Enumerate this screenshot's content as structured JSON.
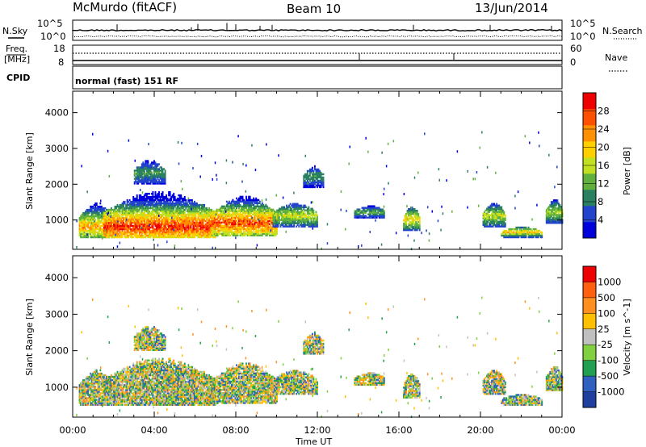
{
  "header": {
    "station": "McMurdo (fitACF)",
    "beam": "Beam 10",
    "date": "13/Jun/2014"
  },
  "strip_panels": {
    "nsky_label": "N.Sky",
    "nsky_ticks": [
      "10^5",
      "10^0"
    ],
    "nsearch_label": "N.Search",
    "nsearch_ticks": [
      "10^5",
      "10^0"
    ],
    "freq_label_1": "Freq.",
    "freq_label_2": "[MHz]",
    "freq_ticks": [
      "18",
      "8"
    ],
    "nave_label": "Nave",
    "nave_ticks": [
      "60",
      "0"
    ],
    "cpid_label": "CPID",
    "cpid_text": "normal (fast) 151 RF"
  },
  "chart_data": [
    {
      "type": "heatmap",
      "quantity": "Power",
      "colorbar_label": "Power [dB]",
      "colorbar_ticks": [
        4,
        8,
        12,
        16,
        20,
        24,
        28
      ],
      "colorscale": [
        "#0000dd",
        "#2244cc",
        "#2a8060",
        "#60b040",
        "#c0e020",
        "#ffd000",
        "#ff9000",
        "#ff5000",
        "#ee0000"
      ],
      "ylabel": "Slant Range [km]",
      "ylim": [
        180,
        4600
      ],
      "yticks": [
        1000,
        2000,
        3000,
        4000
      ],
      "xlabel": "Time UT",
      "xlim_hours": [
        0,
        24
      ],
      "xtick_labels": [
        "00:00",
        "04:00",
        "08:00",
        "12:00",
        "16:00",
        "20:00",
        "00:00"
      ]
    },
    {
      "type": "heatmap",
      "quantity": "Velocity",
      "colorbar_label": "Velocity [m s^-1]",
      "colorbar_ticks": [
        "1000",
        "500",
        "100",
        "25",
        "-25",
        "-100",
        "-500",
        "-1000"
      ],
      "colorscale": [
        "#2040a0",
        "#3060c0",
        "#20a050",
        "#80d040",
        "#c0c0c0",
        "#ffc000",
        "#ff9020",
        "#ff6010",
        "#ee0000"
      ],
      "ylabel": "Slant Range [km]",
      "ylim": [
        180,
        4600
      ],
      "yticks": [
        1000,
        2000,
        3000,
        4000
      ],
      "xlabel": "Time UT",
      "xlim_hours": [
        0,
        24
      ],
      "xtick_labels": [
        "00:00",
        "04:00",
        "08:00",
        "12:00",
        "16:00",
        "20:00",
        "00:00"
      ]
    }
  ],
  "scatter_regions": [
    {
      "t0": 0.3,
      "t1": 2.0,
      "r0": 500,
      "r1": 1500,
      "core": 800,
      "pw": 0.75
    },
    {
      "t0": 1.5,
      "t1": 7.0,
      "r0": 500,
      "r1": 1800,
      "core": 800,
      "pw": 0.95
    },
    {
      "t0": 6.8,
      "t1": 10.0,
      "r0": 550,
      "r1": 1700,
      "core": 900,
      "pw": 0.9
    },
    {
      "t0": 9.8,
      "t1": 12.0,
      "r0": 800,
      "r1": 1500,
      "core": 1100,
      "pw": 0.55
    },
    {
      "t0": 13.8,
      "t1": 15.3,
      "r0": 1050,
      "r1": 1400,
      "core": 1200,
      "pw": 0.4
    },
    {
      "t0": 16.2,
      "t1": 17.0,
      "r0": 700,
      "r1": 1400,
      "core": 1000,
      "pw": 0.65
    },
    {
      "t0": 20.1,
      "t1": 21.2,
      "r0": 800,
      "r1": 1500,
      "core": 1100,
      "pw": 0.55
    },
    {
      "t0": 21.0,
      "t1": 23.0,
      "r0": 500,
      "r1": 800,
      "core": 650,
      "pw": 0.7
    },
    {
      "t0": 23.2,
      "t1": 24.0,
      "r0": 900,
      "r1": 1600,
      "core": 1200,
      "pw": 0.5
    },
    {
      "t0": 3.0,
      "t1": 4.5,
      "r0": 2000,
      "r1": 2700,
      "core": 2300,
      "pw": 0.35
    },
    {
      "t0": 11.3,
      "t1": 12.3,
      "r0": 1900,
      "r1": 2500,
      "core": 2200,
      "pw": 0.35
    }
  ]
}
